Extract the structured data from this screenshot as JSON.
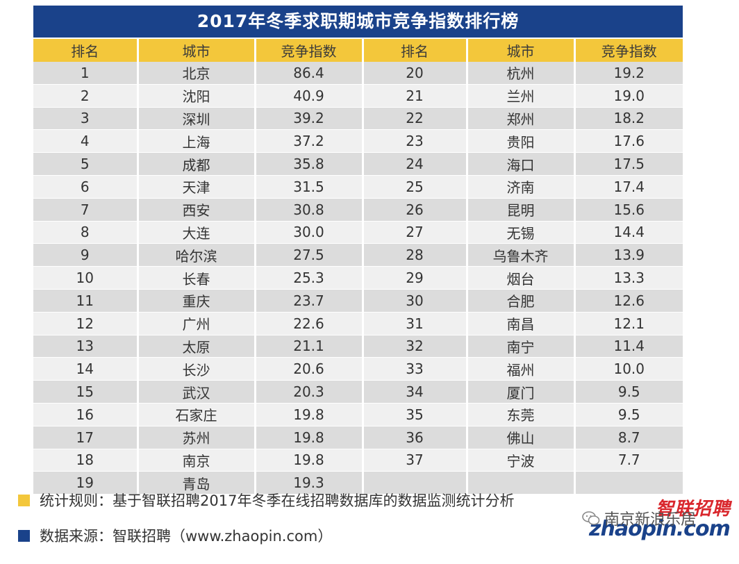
{
  "title": "2017年冬季求职期城市竞争指数排行榜",
  "table": {
    "headers": [
      "排名",
      "城市",
      "竞争指数",
      "排名",
      "城市",
      "竞争指数"
    ],
    "rows": [
      [
        "1",
        "北京",
        "86.4",
        "20",
        "杭州",
        "19.2"
      ],
      [
        "2",
        "沈阳",
        "40.9",
        "21",
        "兰州",
        "19.0"
      ],
      [
        "3",
        "深圳",
        "39.2",
        "22",
        "郑州",
        "18.2"
      ],
      [
        "4",
        "上海",
        "37.2",
        "23",
        "贵阳",
        "17.6"
      ],
      [
        "5",
        "成都",
        "35.8",
        "24",
        "海口",
        "17.5"
      ],
      [
        "6",
        "天津",
        "31.5",
        "25",
        "济南",
        "17.4"
      ],
      [
        "7",
        "西安",
        "30.8",
        "26",
        "昆明",
        "15.6"
      ],
      [
        "8",
        "大连",
        "30.0",
        "27",
        "无锡",
        "14.4"
      ],
      [
        "9",
        "哈尔滨",
        "27.5",
        "28",
        "乌鲁木齐",
        "13.9"
      ],
      [
        "10",
        "长春",
        "25.3",
        "29",
        "烟台",
        "13.3"
      ],
      [
        "11",
        "重庆",
        "23.7",
        "30",
        "合肥",
        "12.6"
      ],
      [
        "12",
        "广州",
        "22.6",
        "31",
        "南昌",
        "12.1"
      ],
      [
        "13",
        "太原",
        "21.1",
        "32",
        "南宁",
        "11.4"
      ],
      [
        "14",
        "长沙",
        "20.6",
        "33",
        "福州",
        "10.0"
      ],
      [
        "15",
        "武汉",
        "20.3",
        "34",
        "厦门",
        "9.5"
      ],
      [
        "16",
        "石家庄",
        "19.8",
        "35",
        "东莞",
        "9.5"
      ],
      [
        "17",
        "苏州",
        "19.8",
        "36",
        "佛山",
        "8.7"
      ],
      [
        "18",
        "南京",
        "19.8",
        "37",
        "宁波",
        "7.7"
      ],
      [
        "19",
        "青岛",
        "19.3",
        "",
        "",
        ""
      ]
    ]
  },
  "notes": {
    "rule": "统计规则：基于智联招聘2017年冬季在线招聘数据库的数据监测统计分析",
    "source": "数据来源：智联招聘（www.zhaopin.com）"
  },
  "colors": {
    "title_bg": "#1a428a",
    "header_bg": "#f3c73b",
    "rule_swatch": "#f3c73b",
    "source_swatch": "#1a428a"
  },
  "watermark": {
    "brand": "智联招聘",
    "url": "zhaopin.com",
    "account": "南京新浪乐居"
  }
}
